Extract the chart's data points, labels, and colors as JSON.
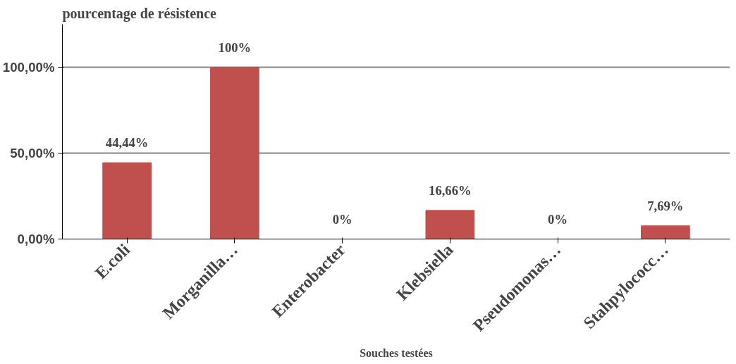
{
  "chart_data": {
    "type": "bar",
    "ylabel": "pourcentage de résistence",
    "xlabel": "Souches testées",
    "categories": [
      "E.coli",
      "Morganilla…",
      "Enterobacter",
      "Klebsiella",
      "Pseudomonas…",
      "Stahpylococc…"
    ],
    "values": [
      44.44,
      100,
      0,
      16.66,
      0,
      7.69
    ],
    "value_labels": [
      "44,44%",
      "100%",
      "0%",
      "16,66%",
      "0%",
      "7,69%"
    ],
    "color": "#c0504d",
    "ylim": [
      0,
      125
    ],
    "yticks": [
      {
        "value": 0,
        "label": "0,00%"
      },
      {
        "value": 50,
        "label": "50,00%"
      },
      {
        "value": 100,
        "label": "100,00%"
      }
    ],
    "grid": "y"
  }
}
